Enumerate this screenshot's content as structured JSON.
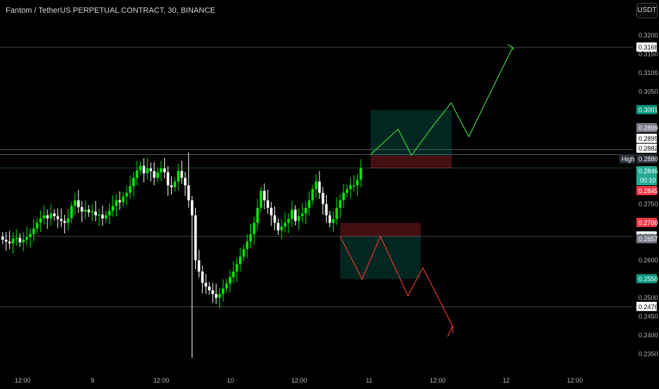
{
  "header": {
    "title": "Fantom / TetherUS PERPETUAL CONTRACT, 30, BINANCE",
    "currency_button": "USDT"
  },
  "chart_data": {
    "type": "candlestick",
    "title": "Fantom / TetherUS PERPETUAL CONTRACT, 30, BINANCE",
    "y_ticks": [
      "0.3200",
      "0.3150",
      "0.3100",
      "0.3050",
      "0.2750",
      "0.2600",
      "0.2500",
      "0.2450",
      "0.2400",
      "0.2350"
    ],
    "x_ticks": [
      "12:00",
      "9",
      "12:00",
      "10",
      "12:00",
      "11",
      "12:00",
      "12",
      "12:00"
    ],
    "price_labels": [
      {
        "value": "0.3168",
        "bg": "#ffffff",
        "fg": "#000000"
      },
      {
        "value": "0.3001",
        "bg": "#089981",
        "fg": "#ffffff"
      },
      {
        "value": "0.2899",
        "bg": "#787b86",
        "fg": "#ffffff"
      },
      {
        "value": "0.2895",
        "bg": "#ffffff",
        "fg": "#000000"
      },
      {
        "value": "0.2882",
        "bg": "#ffffff",
        "fg": "#000000"
      },
      {
        "value": "0.2880",
        "bg": "#2a2e39",
        "fg": "#ffffff",
        "tag": "High"
      },
      {
        "value": "0.2846",
        "bg": "#22ab94",
        "fg": "#ffffff",
        "sub": "00:10"
      },
      {
        "value": "0.2845",
        "bg": "#f23645",
        "fg": "#ffffff"
      },
      {
        "value": "0.2700",
        "bg": "#f23645",
        "fg": "#ffffff"
      },
      {
        "value": "0.2664",
        "bg": "#ffffff",
        "fg": "#000000"
      },
      {
        "value": "0.2657",
        "bg": "#787b86",
        "fg": "#ffffff"
      },
      {
        "value": "0.2550",
        "bg": "#089981",
        "fg": "#ffffff"
      },
      {
        "value": "0.2476",
        "bg": "#ffffff",
        "fg": "#000000"
      }
    ],
    "horizontal_lines": [
      0.3168,
      0.2895,
      0.2882,
      0.2846,
      0.2664,
      0.2476
    ],
    "long_position": {
      "entry": 0.288,
      "target": 0.3001,
      "stop": 0.2845
    },
    "short_position": {
      "entry": 0.2664,
      "target": 0.255,
      "stop": 0.27
    },
    "series_close": [
      0.2655,
      0.265,
      0.2645,
      0.2658,
      0.266,
      0.2648,
      0.2655,
      0.2662,
      0.267,
      0.2685,
      0.27,
      0.2712,
      0.272,
      0.2712,
      0.2725,
      0.2718,
      0.271,
      0.2705,
      0.27,
      0.2712,
      0.2745,
      0.276,
      0.2742,
      0.273,
      0.2735,
      0.2728,
      0.273,
      0.272,
      0.2722,
      0.2712,
      0.272,
      0.2732,
      0.2745,
      0.276,
      0.2755,
      0.277,
      0.278,
      0.2798,
      0.282,
      0.284,
      0.2852,
      0.2832,
      0.2845,
      0.2838,
      0.282,
      0.2835,
      0.2845,
      0.2835,
      0.28,
      0.2795,
      0.281,
      0.2838,
      0.282,
      0.28,
      0.276,
      0.272,
      0.26,
      0.257,
      0.254,
      0.253,
      0.252,
      0.251,
      0.25,
      0.251,
      0.2525,
      0.2538,
      0.2555,
      0.257,
      0.259,
      0.261,
      0.263,
      0.265,
      0.267,
      0.27,
      0.274,
      0.2785,
      0.276,
      0.274,
      0.272,
      0.27,
      0.268,
      0.269,
      0.27,
      0.271,
      0.2735,
      0.2705,
      0.2718,
      0.2725,
      0.274,
      0.276,
      0.279,
      0.281,
      0.278,
      0.275,
      0.272,
      0.27,
      0.271,
      0.274,
      0.276,
      0.278,
      0.279,
      0.28,
      0.28,
      0.2815,
      0.2846
    ],
    "projection_long": [
      0.2882,
      0.295,
      0.288,
      0.295,
      0.302,
      0.293,
      0.3168
    ],
    "projection_short": [
      0.2664,
      0.255,
      0.2664,
      0.2505,
      0.258,
      0.2425
    ]
  }
}
